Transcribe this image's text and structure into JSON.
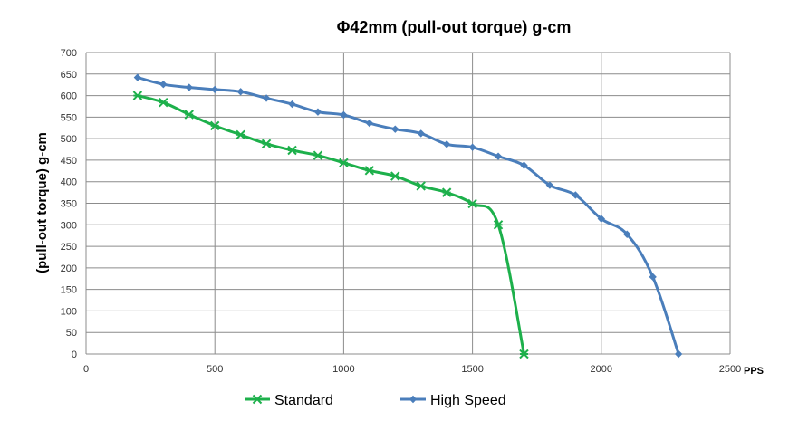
{
  "chart_data": {
    "type": "line",
    "title": "Φ42mm  (pull-out torque) g-cm",
    "ylabel": "(pull-out torque) g-cm",
    "xlabel": "PPS",
    "xlim": [
      0,
      2500
    ],
    "ylim": [
      0,
      700
    ],
    "xticks": [
      0,
      500,
      1000,
      1500,
      2000,
      2500
    ],
    "yticks": [
      0,
      50,
      100,
      150,
      200,
      250,
      300,
      350,
      400,
      450,
      500,
      550,
      600,
      650,
      700
    ],
    "grid": true,
    "legend_position": "bottom",
    "series": [
      {
        "name": "Standard",
        "color": "#1db04b",
        "marker": "asterisk",
        "x": [
          200,
          300,
          400,
          500,
          600,
          700,
          800,
          900,
          1000,
          1100,
          1200,
          1300,
          1400,
          1500,
          1600,
          1700
        ],
        "y": [
          600,
          584,
          556,
          530,
          509,
          488,
          473,
          461,
          444,
          426,
          413,
          390,
          375,
          349,
          300,
          0
        ]
      },
      {
        "name": "High Speed",
        "color": "#4a7ebb",
        "marker": "diamond",
        "x": [
          200,
          300,
          400,
          500,
          600,
          700,
          800,
          900,
          1000,
          1100,
          1200,
          1300,
          1400,
          1500,
          1600,
          1700,
          1800,
          1900,
          2000,
          2100,
          2200,
          2300
        ],
        "y": [
          642,
          626,
          619,
          614,
          609,
          594,
          580,
          562,
          555,
          536,
          522,
          512,
          487,
          480,
          459,
          438,
          392,
          369,
          314,
          278,
          179,
          0
        ]
      }
    ]
  }
}
